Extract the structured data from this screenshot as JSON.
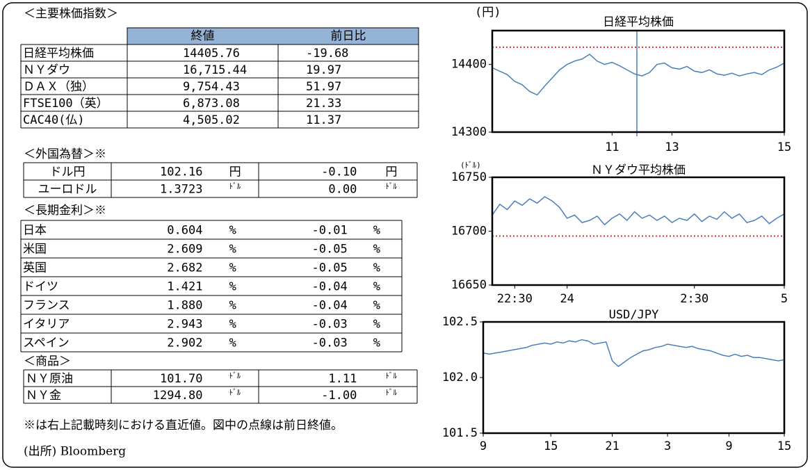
{
  "tables": {
    "sections": [
      {
        "title": "＜主要株価指数＞",
        "columns": [
          "終値",
          "前日比"
        ],
        "rows": [
          [
            "日経平均株価",
            "14405.76",
            "-19.68"
          ],
          [
            "ＮＹダウ",
            "16,715.44",
            "19.97"
          ],
          [
            "ＤＡＸ（独）",
            "9,754.43",
            "51.97"
          ],
          [
            "FTSE100（英）",
            "6,873.08",
            "21.33"
          ],
          [
            "CAC40(仏)",
            "4,505.02",
            "11.37"
          ]
        ]
      },
      {
        "title": "＜外国為替＞※",
        "rows": [
          [
            "ドル円",
            "102.16",
            "円",
            "-0.10",
            "円"
          ],
          [
            "ユーロドル",
            "1.3723",
            "ﾄﾞﾙ",
            "0.00",
            "ﾄﾞﾙ"
          ]
        ]
      },
      {
        "title": "＜長期金利＞※",
        "rows": [
          [
            "日本",
            "0.604",
            "%",
            "-0.01",
            "%"
          ],
          [
            "米国",
            "2.609",
            "%",
            "-0.05",
            "%"
          ],
          [
            "英国",
            "2.682",
            "%",
            "-0.05",
            "%"
          ],
          [
            "ドイツ",
            "1.421",
            "%",
            "-0.04",
            "%"
          ],
          [
            "フランス",
            "1.880",
            "%",
            "-0.04",
            "%"
          ],
          [
            "イタリア",
            "2.943",
            "%",
            "-0.03",
            "%"
          ],
          [
            "スペイン",
            "2.902",
            "%",
            "-0.03",
            "%"
          ]
        ]
      },
      {
        "title": "＜商品＞",
        "rows": [
          [
            "ＮＹ原油",
            "101.70",
            "ﾄﾞﾙ",
            "1.11",
            "ﾄﾞﾙ"
          ],
          [
            "ＮＹ金",
            "1294.80",
            "ﾄﾞﾙ",
            "-1.00",
            "ﾄﾞﾙ"
          ]
        ]
      }
    ],
    "note": "※は右上記載時刻における直近値。図中の点線は前日終値。",
    "source": "(出所) Bloomberg"
  },
  "chart_data": [
    {
      "type": "line",
      "title": "日経平均株価",
      "y_label": "(円)",
      "color": "#4a7ebb",
      "values": [
        14395,
        14390,
        14385,
        14375,
        14370,
        14360,
        14355,
        14368,
        14380,
        14392,
        14400,
        14405,
        14408,
        14415,
        14405,
        14400,
        14403,
        14398,
        14392,
        14386,
        14383,
        14388,
        14400,
        14402,
        14395,
        14393,
        14397,
        14390,
        14388,
        14392,
        14386,
        14384,
        14387,
        14383,
        14386,
        14388,
        14385,
        14392,
        14396,
        14402
      ],
      "xlim": [
        0,
        39
      ],
      "xticks": [
        {
          "value": 16,
          "label": "11"
        },
        {
          "value": 24,
          "label": "13"
        },
        {
          "value": 39,
          "label": "15"
        }
      ],
      "ylim": [
        14300,
        14450
      ],
      "yticks": [
        14300,
        14400
      ],
      "reference": 14425.44,
      "reference_color": "#e03030"
    },
    {
      "type": "line",
      "title": "ＮＹダウ平均株価",
      "y_label": "(ﾄﾞﾙ)",
      "color": "#4a7ebb",
      "values": [
        16715,
        16725,
        16720,
        16728,
        16724,
        16730,
        16726,
        16732,
        16728,
        16722,
        16712,
        16715,
        16708,
        16710,
        16714,
        16706,
        16712,
        16716,
        16710,
        16718,
        16712,
        16715,
        16710,
        16714,
        16708,
        16712,
        16710,
        16716,
        16709,
        16714,
        16711,
        16718,
        16712,
        16716,
        16708,
        16710,
        16714,
        16707,
        16712,
        16716
      ],
      "xlim": [
        0,
        39
      ],
      "xticks": [
        {
          "value": 3,
          "label": "22:30"
        },
        {
          "value": 10,
          "label": "24"
        },
        {
          "value": 27,
          "label": "2:30"
        },
        {
          "value": 39,
          "label": "5"
        }
      ],
      "ylim": [
        16650,
        16750
      ],
      "yticks": [
        16650,
        16700,
        16750
      ],
      "reference": 16695.47,
      "reference_color": "#e03030"
    },
    {
      "type": "line",
      "title": "USD/JPY",
      "color": "#4a7ebb",
      "values": [
        102.22,
        102.21,
        102.22,
        102.23,
        102.24,
        102.25,
        102.26,
        102.27,
        102.29,
        102.3,
        102.31,
        102.3,
        102.32,
        102.31,
        102.33,
        102.32,
        102.34,
        102.33,
        102.3,
        102.31,
        102.32,
        102.15,
        102.1,
        102.14,
        102.18,
        102.21,
        102.24,
        102.25,
        102.27,
        102.28,
        102.3,
        102.29,
        102.28,
        102.27,
        102.28,
        102.26,
        102.25,
        102.24,
        102.22,
        102.2,
        102.19,
        102.21,
        102.19,
        102.2,
        102.18,
        102.18,
        102.17,
        102.16,
        102.15,
        102.16
      ],
      "xlim": [
        0,
        49
      ],
      "xticks": [
        {
          "value": 0,
          "label": "9"
        },
        {
          "value": 11,
          "label": "15"
        },
        {
          "value": 21,
          "label": "21"
        },
        {
          "value": 30,
          "label": "3"
        },
        {
          "value": 40,
          "label": "9"
        },
        {
          "value": 49,
          "label": "15"
        }
      ],
      "ylim": [
        101.5,
        102.5
      ],
      "yticks": [
        {
          "value": 101.5,
          "label": "101.5"
        },
        {
          "value": 102,
          "label": "102.0"
        },
        {
          "value": 102.5,
          "label": "102.5"
        }
      ]
    }
  ]
}
